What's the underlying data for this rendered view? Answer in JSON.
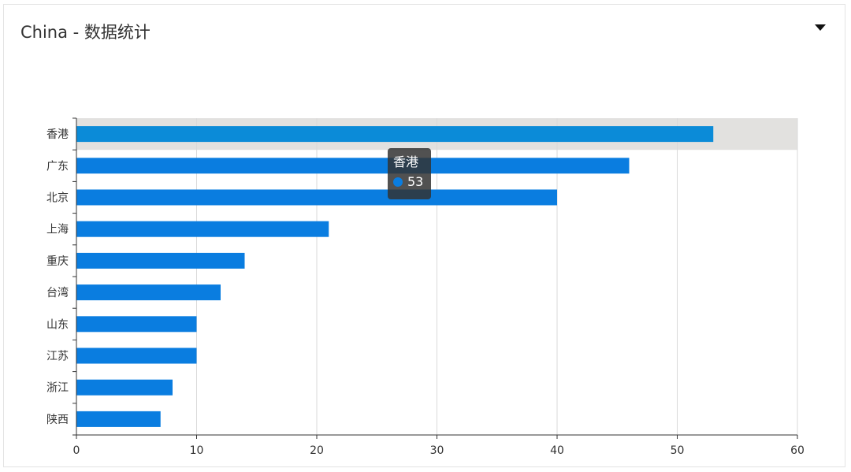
{
  "card": {
    "title": "China - 数据统计"
  },
  "icons": {
    "dropdown": "caret-down-icon"
  },
  "colors": {
    "bar": "#0a7de0",
    "bar_highlight": "#0b8bd8",
    "highlight_band": "#e2e1df",
    "grid": "#d9d9d9",
    "axis": "#333333"
  },
  "tooltip": {
    "title": "香港",
    "value": "53"
  },
  "chart_data": {
    "type": "bar",
    "orientation": "horizontal",
    "categories": [
      "香港",
      "广东",
      "北京",
      "上海",
      "重庆",
      "台湾",
      "山东",
      "江苏",
      "浙江",
      "陕西"
    ],
    "values": [
      53,
      46,
      40,
      21,
      14,
      12,
      10,
      10,
      8,
      7
    ],
    "xlim": [
      0,
      60
    ],
    "xticks": [
      "0",
      "10",
      "20",
      "30",
      "40",
      "50",
      "60"
    ],
    "grid": "vertical",
    "highlighted_category": "香港"
  }
}
